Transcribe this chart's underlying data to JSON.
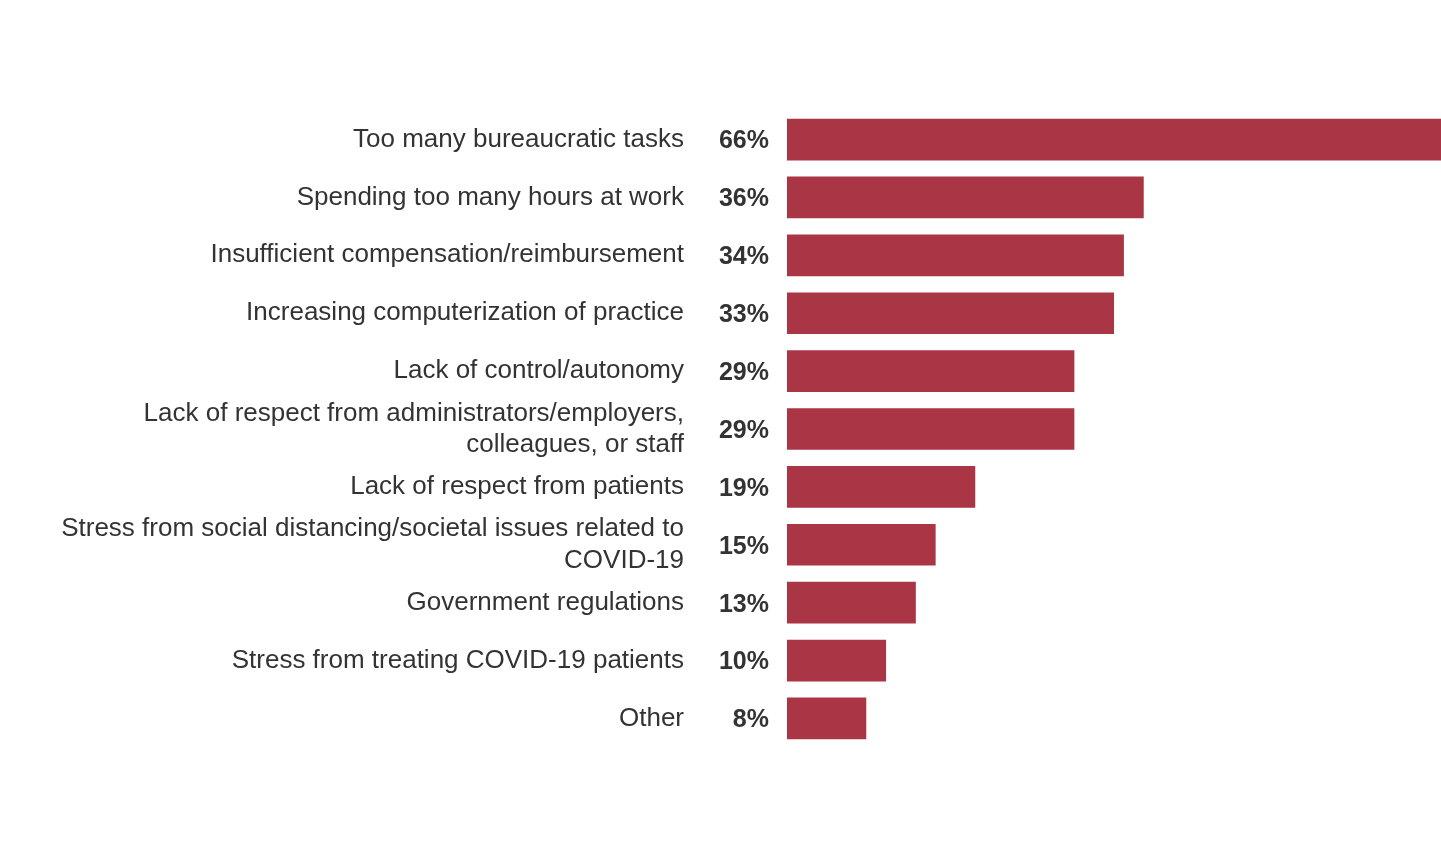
{
  "chart_data": {
    "type": "bar",
    "orientation": "horizontal",
    "categories": [
      "Too many bureaucratic tasks",
      "Spending too many hours at work",
      "Insufficient compensation/reimbursement",
      "Increasing computerization of practice",
      "Lack of control/autonomy",
      "Lack of respect from administrators/employers, colleagues, or staff",
      "Lack of respect from patients",
      "Stress from social distancing/societal issues related to COVID-19",
      "Government regulations",
      "Stress from treating COVID-19 patients",
      "Other"
    ],
    "values": [
      66,
      36,
      34,
      33,
      29,
      29,
      19,
      15,
      13,
      10,
      8
    ],
    "value_labels": [
      "66%",
      "36%",
      "34%",
      "33%",
      "29%",
      "29%",
      "19%",
      "15%",
      "13%",
      "10%",
      "8%"
    ],
    "color": "#a93545",
    "xlim": [
      0,
      66
    ]
  }
}
